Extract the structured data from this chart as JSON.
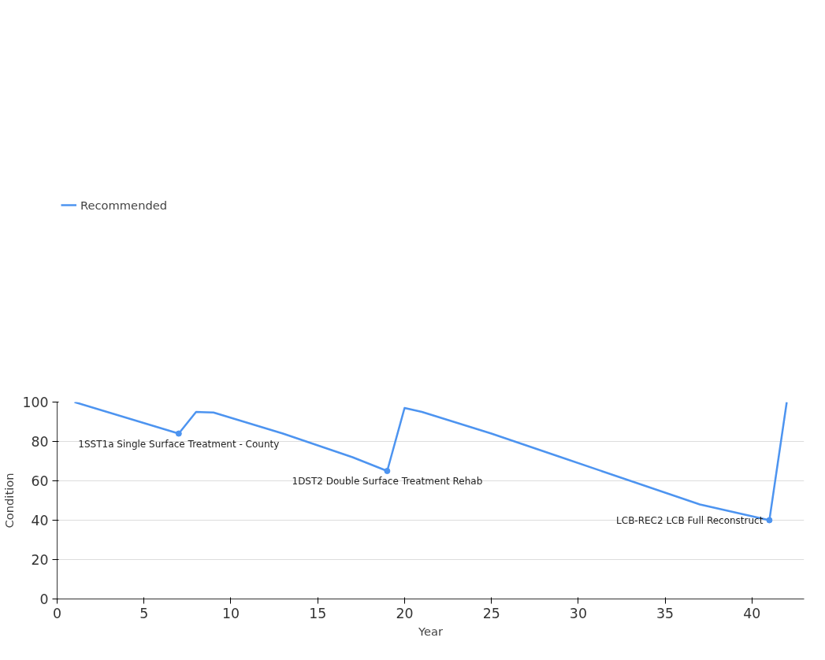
{
  "chart_data": {
    "type": "line",
    "xlabel": "Year",
    "ylabel": "Condition",
    "x": [
      1,
      7,
      8,
      9,
      13,
      17,
      19,
      20,
      21,
      25,
      29,
      37,
      41,
      42
    ],
    "series": [
      {
        "name": "Recommended",
        "color": "#4d94f0",
        "values": [
          100,
          84,
          95,
          94.7,
          84,
          72,
          65,
          97,
          95,
          84,
          72,
          48,
          40,
          100
        ]
      }
    ],
    "xlim": [
      0,
      43
    ],
    "ylim": [
      0,
      100
    ],
    "xticks": [
      0,
      5,
      10,
      15,
      20,
      25,
      30,
      35,
      40
    ],
    "yticks": [
      0,
      20,
      40,
      60,
      80,
      100
    ],
    "grid": "y",
    "legend": "top left",
    "marker": "none",
    "annotations": [
      {
        "text": "1SST1a Single Surface Treatment - County",
        "x": 7,
        "y": 84
      },
      {
        "text": "1DST2 Double Surface Treatment Rehab",
        "x": 19,
        "y": 65
      },
      {
        "text": "LCB-REC2 LCB Full Reconstruct",
        "x": 41,
        "y": 40
      }
    ]
  }
}
